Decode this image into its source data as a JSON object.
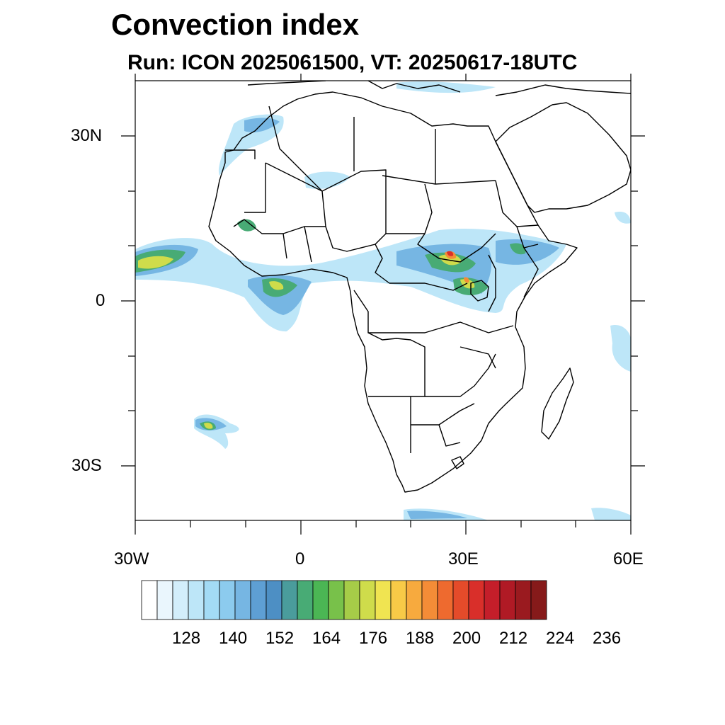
{
  "title": "Convection index",
  "subtitle": "Run: ICON 2025061500,  VT: 20250617-18UTC",
  "map": {
    "lon_range": [
      -30,
      60
    ],
    "lat_range": [
      -40,
      40
    ],
    "x_tick_labels": [
      "30W",
      "0",
      "30E",
      "60E"
    ],
    "y_tick_labels": [
      "30N",
      "0",
      "30S"
    ]
  },
  "colorbar": {
    "labels": [
      "128",
      "140",
      "152",
      "164",
      "176",
      "188",
      "200",
      "212",
      "224",
      "236"
    ],
    "colors": [
      "#ffffff",
      "#eaf6fd",
      "#d3eefb",
      "#bde6f8",
      "#a3dbf5",
      "#8ccbee",
      "#76b6e3",
      "#5e9fd4",
      "#4d8fc4",
      "#4a9c9c",
      "#48ab75",
      "#4bb654",
      "#78c14a",
      "#a6cc48",
      "#cfdc4b",
      "#f0e451",
      "#f8ca47",
      "#f7aa3e",
      "#f48c37",
      "#ee6a2f",
      "#e44b2a",
      "#d92f2a",
      "#c41e2a",
      "#b01a25",
      "#9a1a1f",
      "#861a1a"
    ]
  },
  "icons": {
    "map": "africa-coastline-map"
  }
}
